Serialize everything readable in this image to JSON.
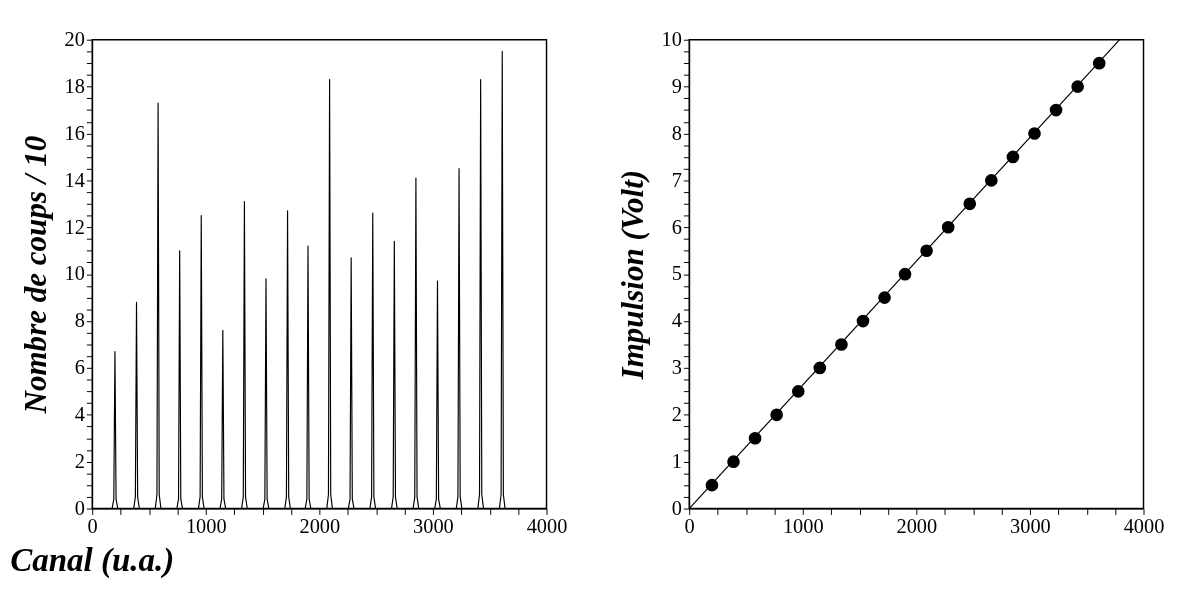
{
  "chart_data": [
    {
      "type": "line",
      "ylabel": "Nombre de coups / 10",
      "xlabel": "Canal (u.a.)",
      "marker": "none",
      "line_style": "solid",
      "grid": false,
      "xlim": [
        0,
        4000
      ],
      "ylim": [
        0,
        20
      ],
      "xticks": [
        0,
        {
          "value": 250,
          "label": null
        },
        {
          "value": 500,
          "label": null
        },
        {
          "value": 750,
          "label": null
        },
        1000,
        {
          "value": 1250,
          "label": null
        },
        {
          "value": 1500,
          "label": null
        },
        {
          "value": 1750,
          "label": null
        },
        2000,
        {
          "value": 2250,
          "label": null
        },
        {
          "value": 2500,
          "label": null
        },
        {
          "value": 2750,
          "label": null
        },
        3000,
        {
          "value": 3250,
          "label": null
        },
        {
          "value": 3500,
          "label": null
        },
        {
          "value": 3750,
          "label": null
        },
        4000
      ],
      "yticks": [
        0,
        {
          "value": 0.5,
          "label": null
        },
        {
          "value": 1,
          "label": null
        },
        {
          "value": 1.5,
          "label": null
        },
        2,
        {
          "value": 2.5,
          "label": null
        },
        {
          "value": 3,
          "label": null
        },
        {
          "value": 3.5,
          "label": null
        },
        4,
        {
          "value": 4.5,
          "label": null
        },
        {
          "value": 5,
          "label": null
        },
        {
          "value": 5.5,
          "label": null
        },
        6,
        {
          "value": 6.5,
          "label": null
        },
        {
          "value": 7,
          "label": null
        },
        {
          "value": 7.5,
          "label": null
        },
        8,
        {
          "value": 8.5,
          "label": null
        },
        {
          "value": 9,
          "label": null
        },
        {
          "value": 9.5,
          "label": null
        },
        10,
        {
          "value": 10.5,
          "label": null
        },
        {
          "value": 11,
          "label": null
        },
        {
          "value": 11.5,
          "label": null
        },
        12,
        {
          "value": 12.5,
          "label": null
        },
        {
          "value": 13,
          "label": null
        },
        {
          "value": 13.5,
          "label": null
        },
        14,
        {
          "value": 14.5,
          "label": null
        },
        {
          "value": 15,
          "label": null
        },
        {
          "value": 15.5,
          "label": null
        },
        16,
        {
          "value": 16.5,
          "label": null
        },
        {
          "value": 17,
          "label": null
        },
        {
          "value": 17.5,
          "label": null
        },
        18,
        {
          "value": 18.5,
          "label": null
        },
        {
          "value": 19,
          "label": null
        },
        {
          "value": 19.5,
          "label": null
        },
        20
      ],
      "series": [
        {
          "color": "#000000",
          "x": [
            0,
            175,
            190,
            200,
            210,
            225,
            365,
            380,
            390,
            400,
            415,
            555,
            570,
            580,
            590,
            605,
            745,
            760,
            770,
            780,
            795,
            935,
            950,
            960,
            970,
            985,
            1125,
            1140,
            1150,
            1160,
            1175,
            1315,
            1330,
            1340,
            1350,
            1365,
            1505,
            1520,
            1530,
            1540,
            1555,
            1695,
            1710,
            1720,
            1730,
            1745,
            1875,
            1890,
            1900,
            1910,
            1925,
            2065,
            2080,
            2090,
            2100,
            2115,
            2255,
            2270,
            2280,
            2290,
            2305,
            2445,
            2460,
            2470,
            2480,
            2495,
            2635,
            2650,
            2660,
            2670,
            2685,
            2825,
            2840,
            2850,
            2860,
            2875,
            3015,
            3030,
            3040,
            3050,
            3065,
            3205,
            3220,
            3230,
            3240,
            3255,
            3395,
            3410,
            3420,
            3430,
            3445,
            3585,
            3600,
            3610,
            3620,
            3635,
            4000
          ],
          "values": [
            0,
            0,
            0.4,
            6.7,
            0.4,
            0,
            0,
            0.5,
            8.8,
            0.5,
            0,
            0,
            0.6,
            17.3,
            0.6,
            0,
            0,
            0.4,
            11,
            0.4,
            0,
            0,
            0.5,
            12.5,
            0.5,
            0,
            0,
            0.4,
            7.6,
            0.4,
            0,
            0,
            0.5,
            13.1,
            0.5,
            0,
            0,
            0.4,
            9.8,
            0.4,
            0,
            0,
            0.5,
            12.7,
            0.5,
            0,
            0,
            0.4,
            11.2,
            0.4,
            0,
            0,
            0.6,
            18.3,
            0.6,
            0,
            0,
            0.4,
            10.7,
            0.4,
            0,
            0,
            0.5,
            12.6,
            0.5,
            0,
            0,
            0.5,
            11.4,
            0.5,
            0,
            0,
            0.5,
            14.1,
            0.5,
            0,
            0,
            0.4,
            9.7,
            0.4,
            0,
            0,
            0.5,
            14.5,
            0.5,
            0,
            0,
            0.6,
            18.3,
            0.6,
            0,
            0,
            0.6,
            19.5,
            0.6,
            0,
            0
          ]
        }
      ]
    },
    {
      "type": "scatter",
      "ylabel": "Impulsion (Volt)",
      "marker": "circle",
      "grid": false,
      "xlim": [
        0,
        4000
      ],
      "ylim": [
        0,
        10
      ],
      "xticks": [
        0,
        {
          "value": 250,
          "label": null
        },
        {
          "value": 500,
          "label": null
        },
        {
          "value": 750,
          "label": null
        },
        1000,
        {
          "value": 1250,
          "label": null
        },
        {
          "value": 1500,
          "label": null
        },
        {
          "value": 1750,
          "label": null
        },
        2000,
        {
          "value": 2250,
          "label": null
        },
        {
          "value": 2500,
          "label": null
        },
        {
          "value": 2750,
          "label": null
        },
        3000,
        {
          "value": 3250,
          "label": null
        },
        {
          "value": 3500,
          "label": null
        },
        {
          "value": 3750,
          "label": null
        },
        4000
      ],
      "yticks": [
        0,
        {
          "value": 0.25,
          "label": null
        },
        {
          "value": 0.5,
          "label": null
        },
        {
          "value": 0.75,
          "label": null
        },
        1,
        {
          "value": 1.25,
          "label": null
        },
        {
          "value": 1.5,
          "label": null
        },
        {
          "value": 1.75,
          "label": null
        },
        2,
        {
          "value": 2.25,
          "label": null
        },
        {
          "value": 2.5,
          "label": null
        },
        {
          "value": 2.75,
          "label": null
        },
        3,
        {
          "value": 3.25,
          "label": null
        },
        {
          "value": 3.5,
          "label": null
        },
        {
          "value": 3.75,
          "label": null
        },
        4,
        {
          "value": 4.25,
          "label": null
        },
        {
          "value": 4.5,
          "label": null
        },
        {
          "value": 4.75,
          "label": null
        },
        5,
        {
          "value": 5.25,
          "label": null
        },
        {
          "value": 5.5,
          "label": null
        },
        {
          "value": 5.75,
          "label": null
        },
        6,
        {
          "value": 6.25,
          "label": null
        },
        {
          "value": 6.5,
          "label": null
        },
        {
          "value": 6.75,
          "label": null
        },
        7,
        {
          "value": 7.25,
          "label": null
        },
        {
          "value": 7.5,
          "label": null
        },
        {
          "value": 7.75,
          "label": null
        },
        8,
        {
          "value": 8.25,
          "label": null
        },
        {
          "value": 8.5,
          "label": null
        },
        {
          "value": 8.75,
          "label": null
        },
        9,
        {
          "value": 9.25,
          "label": null
        },
        {
          "value": 9.5,
          "label": null
        },
        {
          "value": 9.75,
          "label": null
        },
        10
      ],
      "series": [
        {
          "color": "#000000",
          "x": [
            200,
            390,
            580,
            770,
            960,
            1150,
            1340,
            1530,
            1720,
            1900,
            2090,
            2280,
            2470,
            2660,
            2850,
            3040,
            3230,
            3420,
            3610
          ],
          "values": [
            0.5,
            1,
            1.5,
            2,
            2.5,
            3,
            3.5,
            4,
            4.5,
            5,
            5.5,
            6,
            6.5,
            7,
            7.5,
            8,
            8.5,
            9,
            9.5
          ]
        },
        {
          "type": "line",
          "color": "#000000",
          "line_style": "solid",
          "marker": "none",
          "x": [
            0,
            3790
          ],
          "values": [
            0,
            10
          ]
        }
      ]
    }
  ]
}
